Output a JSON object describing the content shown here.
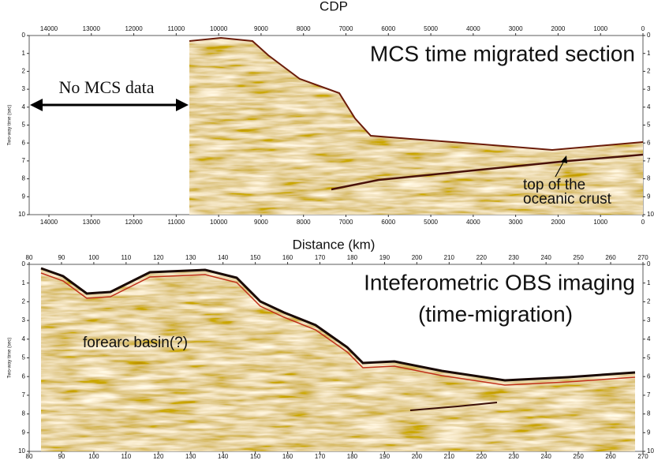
{
  "top_panel": {
    "axis_title": "CDP",
    "xticks": [
      14000,
      13000,
      12000,
      11000,
      10000,
      9000,
      8000,
      7000,
      6000,
      5000,
      4000,
      3000,
      2000,
      1000,
      0
    ],
    "yticks": [
      0,
      1,
      2,
      3,
      4,
      5,
      6,
      7,
      8,
      9,
      10
    ],
    "y_label": "Two-way time (sec)",
    "title": "MCS time migrated section",
    "no_data_label": "No MCS data",
    "crust_label": [
      "top of the",
      "oceanic crust"
    ]
  },
  "bottom_panel": {
    "axis_title": "Distance (km)",
    "xticks": [
      80,
      90,
      100,
      110,
      120,
      130,
      140,
      150,
      160,
      170,
      180,
      190,
      200,
      210,
      220,
      230,
      240,
      250,
      260,
      270
    ],
    "yticks": [
      0,
      1,
      2,
      3,
      4,
      5,
      6,
      7,
      8,
      9,
      10
    ],
    "y_label": "Two-way time (sec)",
    "title": [
      "Inteferometric OBS imaging",
      "(time-migration)"
    ],
    "basin_label": "forearc basin(?)"
  }
}
